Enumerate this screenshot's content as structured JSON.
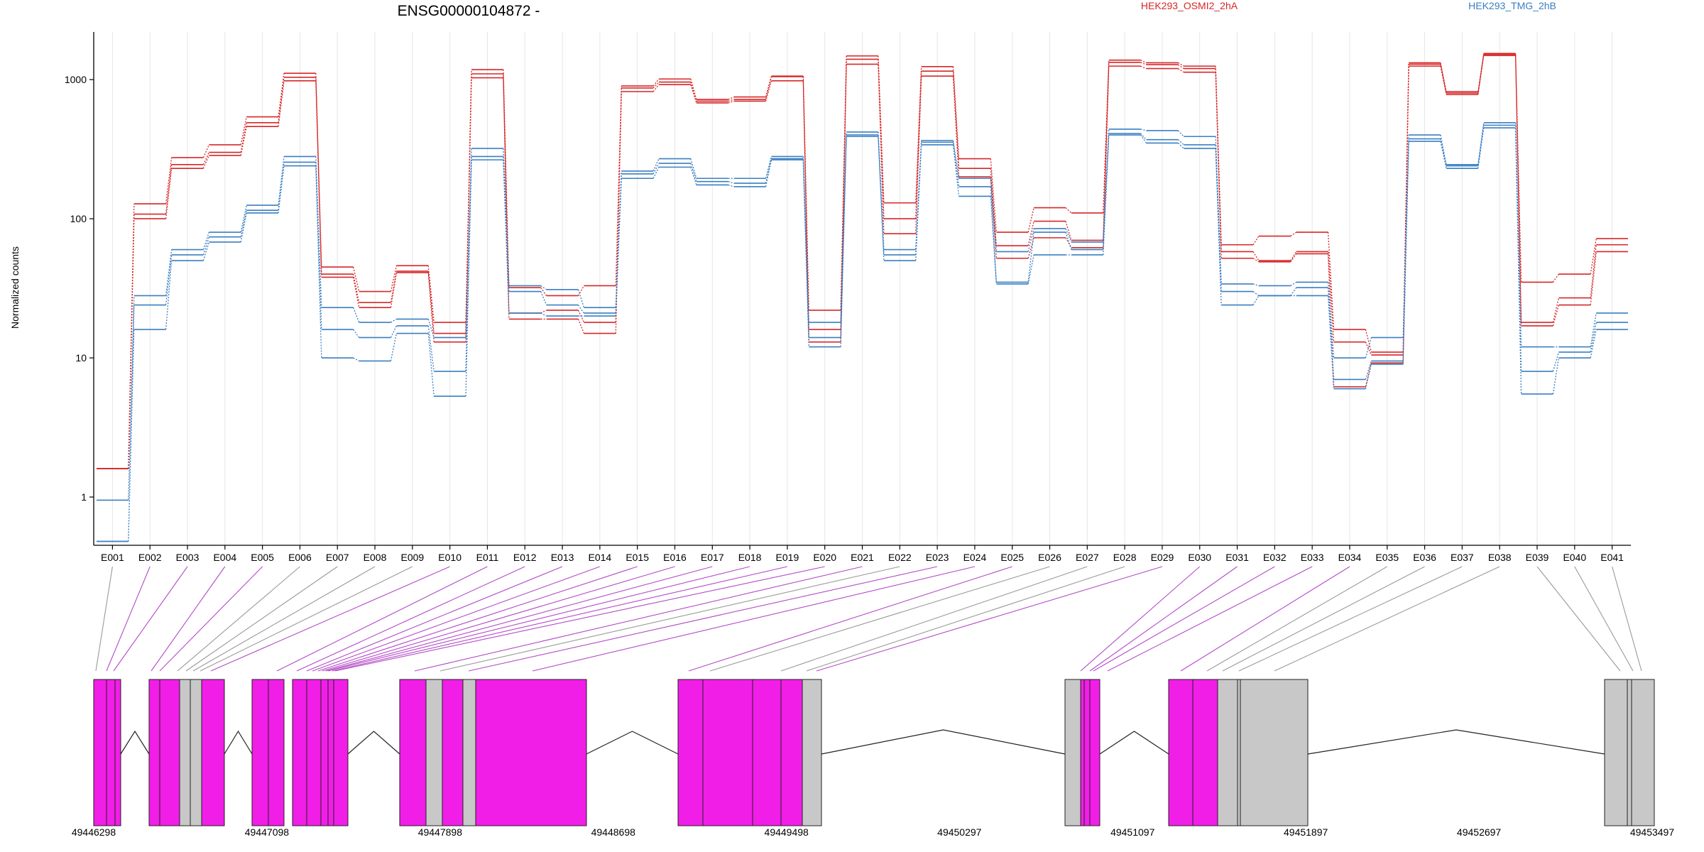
{
  "chart_data": {
    "type": "line",
    "title": "ENSG00000104872 -",
    "xlabel": "",
    "ylabel": "Normalized counts",
    "y_scale": "log",
    "ylim": [
      0.45,
      2200
    ],
    "y_ticks": [
      {
        "value": 1,
        "label": "1"
      },
      {
        "value": 10,
        "label": "10"
      },
      {
        "value": 100,
        "label": "100"
      },
      {
        "value": 1000,
        "label": "1000"
      }
    ],
    "grid": "vertical-light",
    "legend": {
      "placement": "top-right",
      "entries": [
        {
          "label": "HEK293_OSMI2_2hA",
          "color": "#d62728"
        },
        {
          "label": "HEK293_TMG_2hB",
          "color": "#3a7fc1"
        }
      ]
    },
    "categories": [
      "E001",
      "E002",
      "E003",
      "E004",
      "E005",
      "E006",
      "E007",
      "E008",
      "E009",
      "E010",
      "E011",
      "E012",
      "E013",
      "E014",
      "E015",
      "E016",
      "E017",
      "E018",
      "E019",
      "E020",
      "E021",
      "E022",
      "E023",
      "E024",
      "E025",
      "E026",
      "E027",
      "E028",
      "E029",
      "E030",
      "E031",
      "E032",
      "E033",
      "E034",
      "E035",
      "E036",
      "E037",
      "E038",
      "E039",
      "E040",
      "E041"
    ],
    "series": [
      {
        "group": "HEK293_OSMI2_2hA",
        "color": "#d62728",
        "values": [
          1.6,
          128,
          275,
          340,
          540,
          1110,
          45,
          30,
          46,
          18,
          1180,
          32,
          28,
          33,
          900,
          1010,
          720,
          750,
          1060,
          22,
          1480,
          130,
          1240,
          270,
          80,
          120,
          110,
          1380,
          1320,
          1250,
          65,
          75,
          80,
          16,
          11,
          1320,
          820,
          1540,
          35,
          40,
          72
        ]
      },
      {
        "group": "HEK293_OSMI2_2hA",
        "color": "#d62728",
        "values": [
          1.6,
          108,
          245,
          300,
          490,
          1040,
          40,
          25,
          42,
          15,
          1100,
          21,
          22,
          18,
          870,
          960,
          700,
          720,
          1050,
          16,
          1400,
          100,
          1150,
          230,
          64,
          96,
          70,
          1330,
          1280,
          1200,
          58,
          50,
          58,
          13,
          10.5,
          1290,
          800,
          1520,
          18,
          27,
          65
        ]
      },
      {
        "group": "HEK293_OSMI2_2hA",
        "color": "#d62728",
        "values": [
          1.6,
          100,
          230,
          285,
          460,
          980,
          38,
          23,
          41,
          13,
          1030,
          19,
          19,
          15,
          820,
          920,
          680,
          700,
          980,
          13,
          1290,
          78,
          1060,
          200,
          52,
          73,
          62,
          1250,
          1200,
          1130,
          52,
          49,
          56,
          6.2,
          9.2,
          1250,
          780,
          1490,
          17,
          24,
          58
        ]
      },
      {
        "group": "HEK293_TMG_2hB",
        "color": "#3a7fc1",
        "values": [
          0.95,
          28,
          60,
          80,
          125,
          280,
          23,
          18,
          19,
          14,
          320,
          33,
          31,
          23,
          220,
          270,
          195,
          195,
          280,
          18,
          420,
          60,
          365,
          195,
          58,
          85,
          68,
          440,
          430,
          390,
          34,
          33,
          35,
          10,
          14,
          400,
          245,
          490,
          12,
          12,
          21
        ]
      },
      {
        "group": "HEK293_TMG_2hB",
        "color": "#3a7fc1",
        "values": [
          0.48,
          24,
          55,
          74,
          115,
          255,
          16,
          14,
          17,
          8,
          280,
          30,
          24,
          21,
          210,
          250,
          185,
          180,
          270,
          14,
          400,
          55,
          355,
          170,
          35,
          80,
          60,
          410,
          370,
          340,
          30,
          28,
          32,
          7,
          9.5,
          375,
          240,
          470,
          8,
          11,
          18
        ]
      },
      {
        "group": "HEK293_TMG_2hB",
        "color": "#3a7fc1",
        "values": [
          0.48,
          16,
          50,
          68,
          110,
          240,
          10,
          9.5,
          15,
          5.3,
          265,
          21,
          20,
          20,
          195,
          235,
          175,
          170,
          265,
          12,
          390,
          50,
          340,
          145,
          34,
          55,
          55,
          400,
          350,
          320,
          24,
          28,
          28,
          6,
          9,
          360,
          230,
          450,
          5.5,
          10,
          16
        ]
      }
    ]
  },
  "gene_model": {
    "coord_labels": [
      "49446298",
      "49447098",
      "49447898",
      "49448698",
      "49449498",
      "49450297",
      "49451097",
      "49451897",
      "49452697",
      "49453497"
    ],
    "exon_fill_colors": {
      "highlight": "#f01ee6",
      "normal": "#c8c8c8"
    },
    "bin_highlight": [
      false,
      true,
      true,
      true,
      true,
      false,
      false,
      false,
      false,
      true,
      true,
      true,
      true,
      true,
      true,
      true,
      true,
      true,
      true,
      true,
      true,
      false,
      true,
      true,
      true,
      false,
      false,
      false,
      true,
      true,
      true,
      true,
      true,
      true,
      false,
      false,
      false,
      false,
      false,
      false,
      false
    ]
  }
}
